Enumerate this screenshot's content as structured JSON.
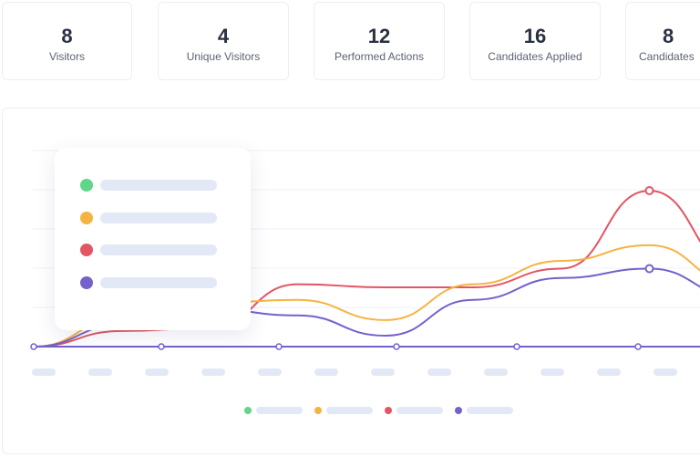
{
  "stats": [
    {
      "value": "8",
      "label": "Visitors"
    },
    {
      "value": "4",
      "label": "Unique Visitors"
    },
    {
      "value": "12",
      "label": "Performed Actions"
    },
    {
      "value": "16",
      "label": "Candidates Applied"
    },
    {
      "value": "8",
      "label": "Candidates"
    }
  ],
  "colors": {
    "green": "#5fd68a",
    "orange": "#f5b342",
    "red": "#e35563",
    "purple": "#7561cc",
    "placeholder": "#e3e8f6",
    "grid": "#eef0f8"
  },
  "chart_data": {
    "type": "line",
    "title": "",
    "xlabel": "",
    "ylabel": "",
    "x_tick_count": 12,
    "ylim": [
      0,
      100
    ],
    "grid": true,
    "legend": "top-left",
    "series": [
      {
        "color": "#e35563",
        "values": [
          0,
          10,
          12,
          40,
          38,
          38,
          50,
          100,
          50
        ]
      },
      {
        "color": "#f5b342",
        "values": [
          0,
          18,
          28,
          30,
          17,
          40,
          55,
          65,
          40
        ]
      },
      {
        "color": "#7561cc",
        "values": [
          0,
          14,
          24,
          20,
          7,
          30,
          44,
          50,
          32
        ]
      }
    ]
  }
}
